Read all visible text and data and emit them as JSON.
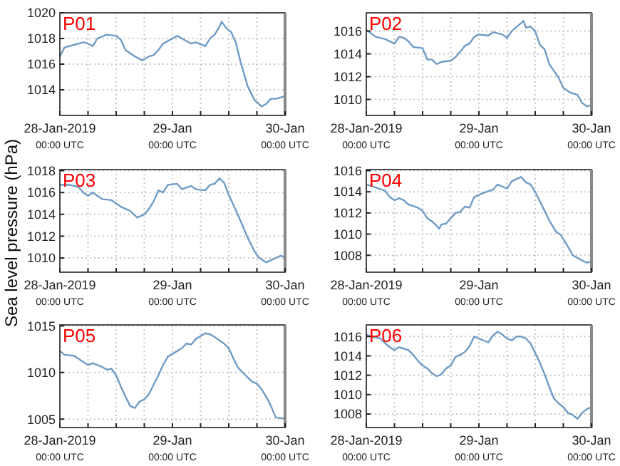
{
  "chart_data": [
    {
      "type": "line",
      "title": "P01",
      "xlim": [
        "2019-01-28T00:00",
        "2019-01-30T00:00"
      ],
      "xticks": [
        {
          "value": "2019-01-28T00:00",
          "label": "28-Jan-2019\n00:00 UTC"
        },
        {
          "value": "2019-01-28T06:00",
          "label": null
        },
        {
          "value": "2019-01-28T12:00",
          "label": null
        },
        {
          "value": "2019-01-28T18:00",
          "label": null
        },
        {
          "value": "2019-01-29T00:00",
          "label": "29-Jan\n00:00 UTC"
        },
        {
          "value": "2019-01-29T06:00",
          "label": null
        },
        {
          "value": "2019-01-29T12:00",
          "label": null
        },
        {
          "value": "2019-01-29T18:00",
          "label": null
        },
        {
          "value": "2019-01-30T00:00",
          "label": "30-Jan\n00:00 UTC"
        }
      ],
      "ylim": [
        1012,
        1020
      ],
      "yticks": [
        1014,
        1016,
        1018,
        1020
      ],
      "grid": true,
      "series": [
        {
          "color": "#6f9cc6",
          "x": [
            "2019-01-28T00:00",
            "2019-01-28T01:00",
            "2019-01-28T03:00",
            "2019-01-28T05:00",
            "2019-01-28T06:00",
            "2019-01-28T07:00",
            "2019-01-28T08:00",
            "2019-01-28T10:00",
            "2019-01-28T12:00",
            "2019-01-28T13:00",
            "2019-01-28T14:00",
            "2019-01-28T16:00",
            "2019-01-28T17:30",
            "2019-01-28T19:00",
            "2019-01-28T20:00",
            "2019-01-28T21:00",
            "2019-01-28T22:00",
            "2019-01-28T23:00",
            "2019-01-29T00:00",
            "2019-01-29T01:00",
            "2019-01-29T02:00",
            "2019-01-29T04:00",
            "2019-01-29T05:00",
            "2019-01-29T07:00",
            "2019-01-29T08:00",
            "2019-01-29T09:00",
            "2019-01-29T10:00",
            "2019-01-29T10:30",
            "2019-01-29T11:30",
            "2019-01-29T12:30",
            "2019-01-29T13:30",
            "2019-01-29T14:30",
            "2019-01-29T16:00",
            "2019-01-29T17:30",
            "2019-01-29T19:00",
            "2019-01-29T20:00",
            "2019-01-29T21:00",
            "2019-01-29T22:00",
            "2019-01-29T23:00",
            "2019-01-30T00:00"
          ],
          "values": [
            1016.6,
            1017.3,
            1017.5,
            1017.7,
            1017.6,
            1017.4,
            1018.0,
            1018.3,
            1018.2,
            1017.9,
            1017.1,
            1016.6,
            1016.3,
            1016.6,
            1016.7,
            1017.1,
            1017.6,
            1017.8,
            1018.0,
            1018.2,
            1018.0,
            1017.6,
            1017.7,
            1017.4,
            1018.0,
            1018.3,
            1018.9,
            1019.3,
            1018.8,
            1018.5,
            1017.7,
            1016.2,
            1014.3,
            1013.2,
            1012.7,
            1012.9,
            1013.3,
            1013.3,
            1013.4,
            1013.5
          ]
        }
      ]
    },
    {
      "type": "line",
      "title": "P02",
      "xlim": [
        "2019-01-28T00:00",
        "2019-01-30T00:00"
      ],
      "xticks": [
        {
          "value": "2019-01-28T00:00",
          "label": "28-Jan-2019\n00:00 UTC"
        },
        {
          "value": "2019-01-28T06:00",
          "label": null
        },
        {
          "value": "2019-01-28T12:00",
          "label": null
        },
        {
          "value": "2019-01-28T18:00",
          "label": null
        },
        {
          "value": "2019-01-29T00:00",
          "label": "29-Jan\n00:00 UTC"
        },
        {
          "value": "2019-01-29T06:00",
          "label": null
        },
        {
          "value": "2019-01-29T12:00",
          "label": null
        },
        {
          "value": "2019-01-29T18:00",
          "label": null
        },
        {
          "value": "2019-01-30T00:00",
          "label": "30-Jan\n00:00 UTC"
        }
      ],
      "ylim": [
        1008.6,
        1017.6
      ],
      "yticks": [
        1010,
        1012,
        1014,
        1016
      ],
      "grid": true,
      "series": [
        {
          "color": "#6f9cc6",
          "x": [
            "2019-01-28T00:00",
            "2019-01-28T01:00",
            "2019-01-28T02:00",
            "2019-01-28T04:00",
            "2019-01-28T06:00",
            "2019-01-28T07:00",
            "2019-01-28T08:00",
            "2019-01-28T09:00",
            "2019-01-28T10:00",
            "2019-01-28T12:00",
            "2019-01-28T13:00",
            "2019-01-28T14:00",
            "2019-01-28T15:00",
            "2019-01-28T16:00",
            "2019-01-28T18:00",
            "2019-01-28T19:00",
            "2019-01-28T21:00",
            "2019-01-28T22:00",
            "2019-01-28T23:00",
            "2019-01-29T00:00",
            "2019-01-29T02:00",
            "2019-01-29T03:00",
            "2019-01-29T05:00",
            "2019-01-29T06:00",
            "2019-01-29T07:00",
            "2019-01-29T09:00",
            "2019-01-29T09:30",
            "2019-01-29T10:00",
            "2019-01-29T11:00",
            "2019-01-29T12:00",
            "2019-01-29T13:00",
            "2019-01-29T14:00",
            "2019-01-29T15:00",
            "2019-01-29T16:00",
            "2019-01-29T17:00",
            "2019-01-29T18:00",
            "2019-01-29T19:30",
            "2019-01-29T21:00",
            "2019-01-29T22:00",
            "2019-01-29T23:00",
            "2019-01-30T00:00"
          ],
          "values": [
            1016.1,
            1015.8,
            1015.5,
            1015.3,
            1014.9,
            1015.5,
            1015.4,
            1015.1,
            1014.6,
            1014.5,
            1013.5,
            1013.5,
            1013.1,
            1013.3,
            1013.4,
            1013.7,
            1014.7,
            1014.9,
            1015.5,
            1015.7,
            1015.6,
            1015.9,
            1015.7,
            1015.4,
            1016.0,
            1016.7,
            1016.9,
            1016.3,
            1016.4,
            1016.0,
            1014.8,
            1014.4,
            1013.1,
            1012.5,
            1011.9,
            1011.0,
            1010.6,
            1010.4,
            1009.7,
            1009.4,
            1009.5
          ]
        }
      ]
    },
    {
      "type": "line",
      "title": "P03",
      "ylabel": "Sea level pressure (hPa)",
      "xlim": [
        "2019-01-28T00:00",
        "2019-01-30T00:00"
      ],
      "xticks": [
        {
          "value": "2019-01-28T00:00",
          "label": "28-Jan-2019\n00:00 UTC"
        },
        {
          "value": "2019-01-28T06:00",
          "label": null
        },
        {
          "value": "2019-01-28T12:00",
          "label": null
        },
        {
          "value": "2019-01-28T18:00",
          "label": null
        },
        {
          "value": "2019-01-29T00:00",
          "label": "29-Jan\n00:00 UTC"
        },
        {
          "value": "2019-01-29T06:00",
          "label": null
        },
        {
          "value": "2019-01-29T12:00",
          "label": null
        },
        {
          "value": "2019-01-29T18:00",
          "label": null
        },
        {
          "value": "2019-01-30T00:00",
          "label": "30-Jan\n00:00 UTC"
        }
      ],
      "ylim": [
        1008.7,
        1018.1
      ],
      "yticks": [
        1010,
        1012,
        1014,
        1016,
        1018
      ],
      "grid": true,
      "series": [
        {
          "color": "#6f9cc6",
          "x": [
            "2019-01-28T00:00",
            "2019-01-28T02:00",
            "2019-01-28T04:00",
            "2019-01-28T05:00",
            "2019-01-28T06:00",
            "2019-01-28T07:00",
            "2019-01-28T08:00",
            "2019-01-28T09:00",
            "2019-01-28T11:00",
            "2019-01-28T13:00",
            "2019-01-28T15:00",
            "2019-01-28T16:00",
            "2019-01-28T16:30",
            "2019-01-28T18:00",
            "2019-01-28T19:00",
            "2019-01-28T20:00",
            "2019-01-28T21:00",
            "2019-01-28T22:00",
            "2019-01-28T23:00",
            "2019-01-29T01:00",
            "2019-01-29T02:00",
            "2019-01-29T04:00",
            "2019-01-29T05:00",
            "2019-01-29T07:00",
            "2019-01-29T08:00",
            "2019-01-29T09:00",
            "2019-01-29T10:00",
            "2019-01-29T11:00",
            "2019-01-29T12:00",
            "2019-01-29T14:00",
            "2019-01-29T16:00",
            "2019-01-29T17:30",
            "2019-01-29T18:30",
            "2019-01-29T20:00",
            "2019-01-29T21:00",
            "2019-01-29T23:00",
            "2019-01-30T00:00"
          ],
          "values": [
            1016.7,
            1016.7,
            1016.5,
            1016.0,
            1015.7,
            1016.0,
            1015.7,
            1015.4,
            1015.3,
            1014.7,
            1014.3,
            1013.9,
            1013.7,
            1014.0,
            1014.5,
            1015.2,
            1016.2,
            1016.0,
            1016.7,
            1016.8,
            1016.3,
            1016.6,
            1016.3,
            1016.2,
            1016.7,
            1016.8,
            1017.3,
            1016.9,
            1015.8,
            1013.9,
            1011.9,
            1010.6,
            1010.0,
            1009.6,
            1009.8,
            1010.2,
            1010.1
          ]
        }
      ]
    },
    {
      "type": "line",
      "title": "P04",
      "xlim": [
        "2019-01-28T00:00",
        "2019-01-30T00:00"
      ],
      "xticks": [
        {
          "value": "2019-01-28T00:00",
          "label": "28-Jan-2019\n00:00 UTC"
        },
        {
          "value": "2019-01-28T06:00",
          "label": null
        },
        {
          "value": "2019-01-28T12:00",
          "label": null
        },
        {
          "value": "2019-01-28T18:00",
          "label": null
        },
        {
          "value": "2019-01-29T00:00",
          "label": "29-Jan\n00:00 UTC"
        },
        {
          "value": "2019-01-29T06:00",
          "label": null
        },
        {
          "value": "2019-01-29T12:00",
          "label": null
        },
        {
          "value": "2019-01-29T18:00",
          "label": null
        },
        {
          "value": "2019-01-30T00:00",
          "label": "30-Jan\n00:00 UTC"
        }
      ],
      "ylim": [
        1006.4,
        1016.1
      ],
      "yticks": [
        1008,
        1010,
        1012,
        1014,
        1016
      ],
      "grid": true,
      "series": [
        {
          "color": "#6f9cc6",
          "x": [
            "2019-01-28T00:00",
            "2019-01-28T02:00",
            "2019-01-28T04:00",
            "2019-01-28T05:00",
            "2019-01-28T06:00",
            "2019-01-28T07:00",
            "2019-01-28T08:00",
            "2019-01-28T09:00",
            "2019-01-28T11:00",
            "2019-01-28T12:00",
            "2019-01-28T13:00",
            "2019-01-28T14:00",
            "2019-01-28T15:00",
            "2019-01-28T15:30",
            "2019-01-28T16:00",
            "2019-01-28T17:00",
            "2019-01-28T19:00",
            "2019-01-28T20:00",
            "2019-01-28T21:00",
            "2019-01-28T22:00",
            "2019-01-28T23:00",
            "2019-01-29T01:00",
            "2019-01-29T03:00",
            "2019-01-29T04:00",
            "2019-01-29T06:00",
            "2019-01-29T07:00",
            "2019-01-29T08:00",
            "2019-01-29T09:00",
            "2019-01-29T10:00",
            "2019-01-29T11:00",
            "2019-01-29T12:00",
            "2019-01-29T13:00",
            "2019-01-29T14:00",
            "2019-01-29T15:00",
            "2019-01-29T16:30",
            "2019-01-29T17:30",
            "2019-01-29T19:00",
            "2019-01-29T20:00",
            "2019-01-29T22:00",
            "2019-01-29T23:00",
            "2019-01-30T00:00"
          ],
          "values": [
            1014.7,
            1014.4,
            1014.1,
            1013.5,
            1013.2,
            1013.4,
            1013.2,
            1012.8,
            1012.5,
            1012.2,
            1011.5,
            1011.2,
            1010.8,
            1010.5,
            1010.9,
            1011.0,
            1012.0,
            1012.1,
            1012.6,
            1012.5,
            1013.5,
            1013.9,
            1014.2,
            1014.7,
            1014.3,
            1015.0,
            1015.2,
            1015.4,
            1014.9,
            1014.7,
            1014.0,
            1013.1,
            1012.2,
            1011.3,
            1010.2,
            1009.9,
            1008.8,
            1008.0,
            1007.5,
            1007.3,
            1007.4
          ]
        }
      ]
    },
    {
      "type": "line",
      "title": "P05",
      "xlim": [
        "2019-01-28T00:00",
        "2019-01-30T00:00"
      ],
      "xticks": [
        {
          "value": "2019-01-28T00:00",
          "label": "28-Jan-2019\n00:00 UTC"
        },
        {
          "value": "2019-01-28T06:00",
          "label": null
        },
        {
          "value": "2019-01-28T12:00",
          "label": null
        },
        {
          "value": "2019-01-28T18:00",
          "label": null
        },
        {
          "value": "2019-01-29T00:00",
          "label": "29-Jan\n00:00 UTC"
        },
        {
          "value": "2019-01-29T06:00",
          "label": null
        },
        {
          "value": "2019-01-29T12:00",
          "label": null
        },
        {
          "value": "2019-01-29T18:00",
          "label": null
        },
        {
          "value": "2019-01-30T00:00",
          "label": "30-Jan\n00:00 UTC"
        }
      ],
      "ylim": [
        1004.1,
        1015.1
      ],
      "yticks": [
        1005,
        1010,
        1015
      ],
      "grid": true,
      "series": [
        {
          "color": "#6f9cc6",
          "x": [
            "2019-01-28T00:00",
            "2019-01-28T01:00",
            "2019-01-28T03:00",
            "2019-01-28T06:00",
            "2019-01-28T07:00",
            "2019-01-28T09:00",
            "2019-01-28T10:00",
            "2019-01-28T11:00",
            "2019-01-28T12:00",
            "2019-01-28T13:00",
            "2019-01-28T14:00",
            "2019-01-28T15:00",
            "2019-01-28T16:00",
            "2019-01-28T17:00",
            "2019-01-28T18:00",
            "2019-01-28T19:00",
            "2019-01-28T20:00",
            "2019-01-28T21:00",
            "2019-01-28T22:00",
            "2019-01-28T23:00",
            "2019-01-29T01:00",
            "2019-01-29T02:00",
            "2019-01-29T03:00",
            "2019-01-29T04:00",
            "2019-01-29T05:00",
            "2019-01-29T07:00",
            "2019-01-29T08:00",
            "2019-01-29T09:00",
            "2019-01-29T11:00",
            "2019-01-29T12:00",
            "2019-01-29T13:00",
            "2019-01-29T14:00",
            "2019-01-29T15:00",
            "2019-01-29T16:00",
            "2019-01-29T17:00",
            "2019-01-29T18:00",
            "2019-01-29T19:00",
            "2019-01-29T20:00",
            "2019-01-29T21:00",
            "2019-01-29T22:00",
            "2019-01-29T23:00",
            "2019-01-30T00:00"
          ],
          "values": [
            1012.3,
            1011.9,
            1011.8,
            1010.8,
            1011.0,
            1010.6,
            1010.3,
            1010.4,
            1009.7,
            1008.5,
            1007.4,
            1006.4,
            1006.2,
            1006.9,
            1007.1,
            1007.7,
            1008.7,
            1009.7,
            1010.8,
            1011.7,
            1012.3,
            1012.6,
            1013.1,
            1013.0,
            1013.6,
            1014.2,
            1014.1,
            1013.8,
            1013.1,
            1012.6,
            1011.5,
            1010.5,
            1010.0,
            1009.5,
            1009.0,
            1008.8,
            1008.2,
            1007.4,
            1006.4,
            1005.2,
            1005.1,
            1005.1
          ]
        }
      ]
    },
    {
      "type": "line",
      "title": "P06",
      "xlim": [
        "2019-01-28T00:00",
        "2019-01-30T00:00"
      ],
      "xticks": [
        {
          "value": "2019-01-28T00:00",
          "label": "28-Jan-2019\n00:00 UTC"
        },
        {
          "value": "2019-01-28T06:00",
          "label": null
        },
        {
          "value": "2019-01-28T12:00",
          "label": null
        },
        {
          "value": "2019-01-28T18:00",
          "label": null
        },
        {
          "value": "2019-01-29T00:00",
          "label": "29-Jan\n00:00 UTC"
        },
        {
          "value": "2019-01-29T06:00",
          "label": null
        },
        {
          "value": "2019-01-29T12:00",
          "label": null
        },
        {
          "value": "2019-01-29T18:00",
          "label": null
        },
        {
          "value": "2019-01-30T00:00",
          "label": "30-Jan\n00:00 UTC"
        }
      ],
      "ylim": [
        1006.6,
        1017.2
      ],
      "yticks": [
        1008,
        1010,
        1012,
        1014,
        1016
      ],
      "grid": true,
      "series": [
        {
          "color": "#6f9cc6",
          "x": [
            "2019-01-28T00:00",
            "2019-01-28T01:00",
            "2019-01-28T03:00",
            "2019-01-28T04:00",
            "2019-01-28T05:00",
            "2019-01-28T06:00",
            "2019-01-28T07:00",
            "2019-01-28T09:00",
            "2019-01-28T10:00",
            "2019-01-28T11:00",
            "2019-01-28T12:00",
            "2019-01-28T13:00",
            "2019-01-28T14:00",
            "2019-01-28T15:00",
            "2019-01-28T16:00",
            "2019-01-28T17:00",
            "2019-01-28T18:00",
            "2019-01-28T19:00",
            "2019-01-28T20:00",
            "2019-01-28T21:00",
            "2019-01-28T22:00",
            "2019-01-28T23:00",
            "2019-01-29T00:00",
            "2019-01-29T01:00",
            "2019-01-29T02:00",
            "2019-01-29T03:00",
            "2019-01-29T04:00",
            "2019-01-29T05:00",
            "2019-01-29T06:00",
            "2019-01-29T07:00",
            "2019-01-29T08:00",
            "2019-01-29T09:00",
            "2019-01-29T10:00",
            "2019-01-29T11:00",
            "2019-01-29T12:00",
            "2019-01-29T13:00",
            "2019-01-29T14:00",
            "2019-01-29T15:00",
            "2019-01-29T16:00",
            "2019-01-29T17:00",
            "2019-01-29T18:00",
            "2019-01-29T19:00",
            "2019-01-29T20:00",
            "2019-01-29T21:00",
            "2019-01-29T22:00",
            "2019-01-29T23:00",
            "2019-01-30T00:00"
          ],
          "values": [
            1016.2,
            1016.0,
            1015.8,
            1015.3,
            1014.9,
            1014.6,
            1014.9,
            1014.6,
            1014.1,
            1013.5,
            1013.0,
            1012.7,
            1012.2,
            1011.9,
            1012.1,
            1012.7,
            1013.0,
            1013.9,
            1014.1,
            1014.4,
            1015.0,
            1016.0,
            1015.8,
            1015.6,
            1015.4,
            1016.1,
            1016.5,
            1016.2,
            1015.8,
            1015.6,
            1016.0,
            1016.0,
            1015.8,
            1015.3,
            1014.3,
            1013.3,
            1012.1,
            1010.8,
            1009.6,
            1009.1,
            1008.7,
            1008.1,
            1007.9,
            1007.5,
            1008.1,
            1008.5,
            1008.7
          ]
        }
      ]
    }
  ]
}
